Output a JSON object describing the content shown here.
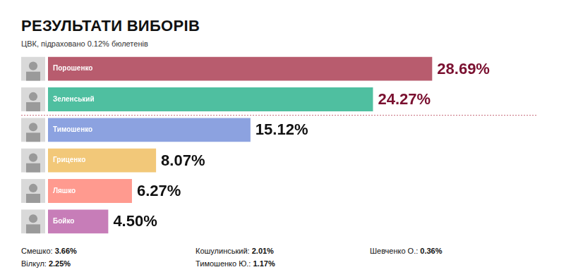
{
  "chart_data": {
    "type": "bar",
    "title": "РЕЗУЛЬТАТИ ВИБОРІВ",
    "subtitle": "ЦВК, підраховано 0.12% бюлетенів",
    "orientation": "horizontal",
    "categories": [
      "Порошенко",
      "Зеленський",
      "Тимошенко",
      "Гриценко",
      "Ляшко",
      "Бойко"
    ],
    "values": [
      28.69,
      24.27,
      15.12,
      8.07,
      6.27,
      4.5
    ],
    "value_labels": [
      "28.69%",
      "24.27%",
      "15.12%",
      "8.07%",
      "6.27%",
      "4.50%"
    ],
    "colors": [
      "#b85c6e",
      "#4fbfa0",
      "#8ca2e0",
      "#f2c879",
      "#ff9a8f",
      "#c77db8"
    ],
    "xlim": [
      0,
      36
    ],
    "data_labels": true,
    "tick_labels": false,
    "grid": false
  },
  "others": [
    {
      "name": "Смешко:",
      "label": "3.66%"
    },
    {
      "name": "Вілкул:",
      "label": "2.25%"
    },
    {
      "name": "Кошулинський:",
      "label": "2.01%"
    },
    {
      "name": "Тимошенко Ю.:",
      "label": "1.17%"
    },
    {
      "name": "Шевченко О.:",
      "label": "0.36%"
    }
  ]
}
